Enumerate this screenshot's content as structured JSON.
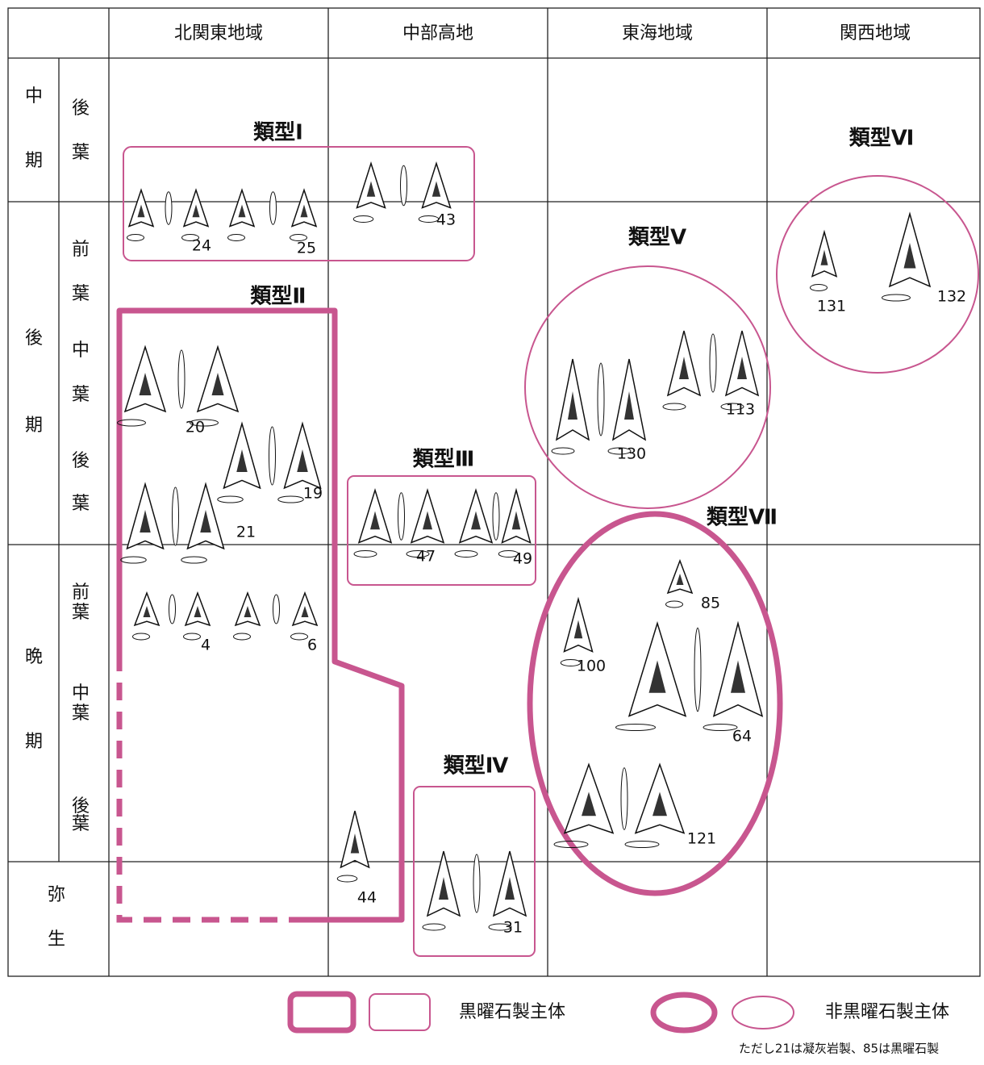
{
  "header": {
    "columns": [
      "北関東地域",
      "中部高地",
      "東海地域",
      "関西地域"
    ]
  },
  "periods": {
    "middle": {
      "chars": [
        "中",
        "期"
      ],
      "sub": [
        [
          "後",
          "葉"
        ]
      ]
    },
    "late": {
      "chars": [
        "後",
        "期"
      ],
      "sub": [
        [
          "前",
          "葉"
        ],
        [
          "中",
          "葉"
        ],
        [
          "後",
          "葉"
        ]
      ]
    },
    "final": {
      "chars": [
        "晩",
        "期"
      ],
      "sub": [
        [
          "前",
          "葉"
        ],
        [
          "中",
          "葉"
        ],
        [
          "後",
          "葉"
        ]
      ]
    },
    "yayoi": {
      "chars": [
        "弥",
        "生"
      ]
    }
  },
  "types": [
    "類型Ⅰ",
    "類型Ⅱ",
    "類型Ⅲ",
    "類型Ⅳ",
    "類型Ⅴ",
    "類型Ⅵ",
    "類型Ⅶ"
  ],
  "artifacts": [
    "24",
    "25",
    "43",
    "20",
    "19",
    "21",
    "4",
    "6",
    "47",
    "49",
    "44",
    "31",
    "130",
    "113",
    "131",
    "132",
    "100",
    "85",
    "64",
    "121"
  ],
  "legend": {
    "obsidian": "黒曜石製主体",
    "non_obsidian": "非黒曜石製主体"
  },
  "footnote": "ただし21は凝灰岩製、85は黒曜石製"
}
